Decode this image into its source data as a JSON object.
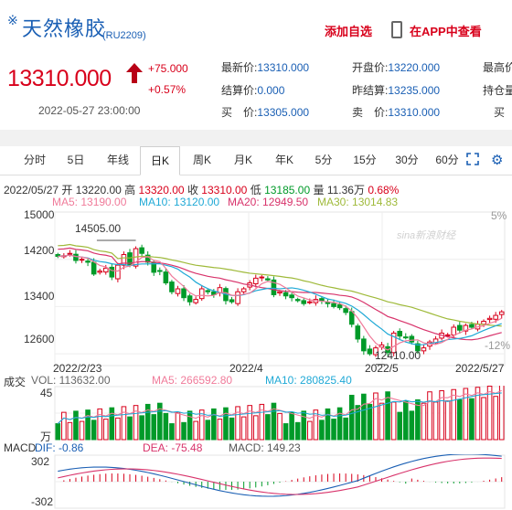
{
  "header": {
    "mark": "※",
    "title": "天然橡胶",
    "code": "(RU2209)",
    "add_label": "添加自选",
    "app_label": "在APP中查看"
  },
  "quote": {
    "price": "13310.000",
    "change": "+75.000",
    "change_pct": "+0.57%",
    "datetime": "2022-05-27 23:00:00",
    "fields": [
      {
        "label": "最新价:",
        "value": "13310.000"
      },
      {
        "label": "开盘价:",
        "value": "13220.000"
      },
      {
        "label": "最高价",
        "value": ""
      },
      {
        "label": "结算价:",
        "value": "0.000"
      },
      {
        "label": "昨结算:",
        "value": "13235.000"
      },
      {
        "label": "持仓量",
        "value": ""
      },
      {
        "label": "买　价:",
        "value": "13305.000"
      },
      {
        "label": "卖　价:",
        "value": "13310.000"
      },
      {
        "label": "买",
        "value": ""
      }
    ]
  },
  "tabs": [
    "分时",
    "5日",
    "年线",
    "日K",
    "周K",
    "月K",
    "年K",
    "5分",
    "15分",
    "30分",
    "60分"
  ],
  "active_tab": "日K",
  "kline_info": {
    "date": "2022/05/27",
    "open_label": "开",
    "open": "13220.00",
    "high_label": "高",
    "high": "13320.00",
    "close_label": "收",
    "close": "13310.00",
    "low_label": "低",
    "low": "13185.00",
    "vol_label": "量",
    "vol": "11.36万",
    "pct": "0.68%"
  },
  "ma": {
    "ma5": "MA5: 13190.00",
    "ma10": "MA10: 13120.00",
    "ma20": "MA20: 12949.50",
    "ma30": "MA30: 13014.83"
  },
  "colors": {
    "up": "#d8001b",
    "down": "#009a29",
    "ma5": "#f07b9a",
    "ma10": "#20a9d6",
    "ma20": "#d8336b",
    "ma30": "#9fba3a",
    "link": "#1a5fb4"
  },
  "main_axis": {
    "ticks": [
      "15000",
      "14200",
      "13400",
      "12600"
    ],
    "pct_top": "5%",
    "pct_bottom": "-12%",
    "high_mark": "14505.00",
    "low_mark": "12410.00",
    "dates": [
      "2022/2/23",
      "2022/4",
      "2022/5",
      "2022/5/27"
    ],
    "watermark": "sina新浪财经"
  },
  "volume": {
    "label": "成交",
    "vol": "VOL: 113632.00",
    "ma5": "MA5: 266592.80",
    "ma10": "MA10: 280825.40",
    "top": "45",
    "unit": "万"
  },
  "macd": {
    "label": "MACD",
    "dif": "DIF: -0.86",
    "dea": "DEA: -75.48",
    "macd": "MACD: 149.23",
    "top": "302",
    "bottom": "-302"
  },
  "chart_data": {
    "type": "candlestick",
    "x": [
      "2022/2/23",
      "2022/4",
      "2022/5",
      "2022/5/27"
    ],
    "ylim": [
      12400,
      15000
    ],
    "closes": [
      14250,
      14260,
      14300,
      14180,
      14200,
      14150,
      13950,
      14000,
      14050,
      13900,
      14100,
      14280,
      14100,
      14380,
      14300,
      14150,
      13980,
      14000,
      13800,
      13650,
      13700,
      13550,
      13480,
      13520,
      13700,
      13650,
      13600,
      13720,
      13500,
      13480,
      13650,
      13700,
      13800,
      13880,
      13900,
      13850,
      13600,
      13650,
      13580,
      13550,
      13500,
      13450,
      13480,
      13520,
      13500,
      13450,
      13400,
      13380,
      13300,
      13100,
      12850,
      12650,
      12600,
      12700,
      12750,
      12620,
      12950,
      12900,
      12880,
      12800,
      12650,
      12700,
      12800,
      12850,
      12950,
      12920,
      13050,
      13000,
      13080,
      13050,
      13100,
      13150,
      13200,
      13250,
      13310
    ],
    "volume_max": 45,
    "volume_unit": "万",
    "macd_range": [
      -302,
      302
    ]
  }
}
